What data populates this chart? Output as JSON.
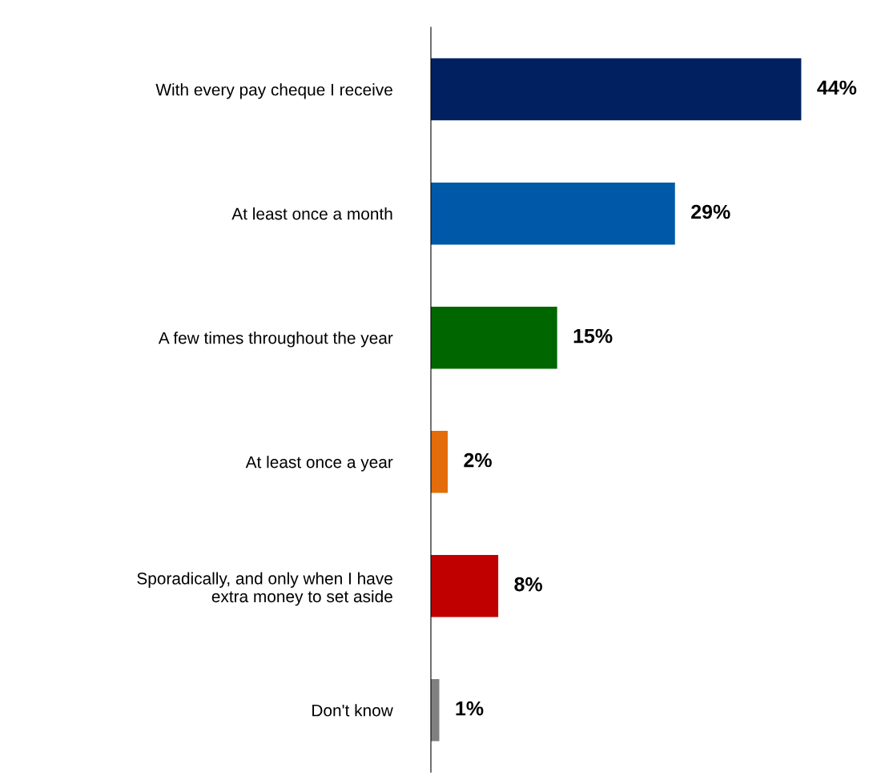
{
  "chart_data": {
    "type": "bar",
    "orientation": "horizontal",
    "categories": [
      "With every pay cheque I receive",
      "At least once a month",
      "A few times throughout the year",
      "At least once a year",
      "Sporadically, and only when I have\nextra money to set aside",
      "Don't know"
    ],
    "values": [
      44,
      29,
      15,
      2,
      8,
      1
    ],
    "colors": [
      "#002060",
      "#0058a8",
      "#006600",
      "#e46c0a",
      "#c00000",
      "#808080"
    ],
    "value_labels": [
      "44%",
      "29%",
      "15%",
      "2%",
      "8%",
      "1%"
    ],
    "xlim": [
      0,
      53
    ],
    "tick_labels": "y",
    "grid": false,
    "legend": false
  }
}
